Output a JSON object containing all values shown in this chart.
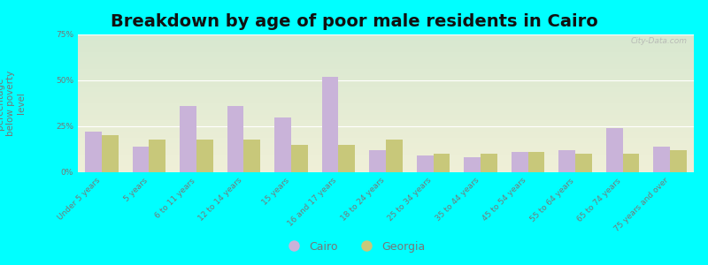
{
  "title": "Breakdown by age of poor male residents in Cairo",
  "ylabel": "percentage\nbelow poverty\nlevel",
  "categories": [
    "Under 5 years",
    "5 years",
    "6 to 11 years",
    "12 to 14 years",
    "15 years",
    "16 and 17 years",
    "18 to 24 years",
    "25 to 34 years",
    "35 to 44 years",
    "45 to 54 years",
    "55 to 64 years",
    "65 to 74 years",
    "75 years and over"
  ],
  "cairo_values": [
    22,
    14,
    36,
    36,
    30,
    52,
    12,
    9,
    8,
    11,
    12,
    24,
    14
  ],
  "georgia_values": [
    20,
    18,
    18,
    18,
    15,
    15,
    18,
    10,
    10,
    11,
    10,
    10,
    12
  ],
  "cairo_color": "#c9b3d9",
  "georgia_color": "#c8c87a",
  "ylim": [
    0,
    75
  ],
  "yticks": [
    0,
    25,
    50,
    75
  ],
  "ytick_labels": [
    "0%",
    "25%",
    "50%",
    "75%"
  ],
  "background_color": "#00ffff",
  "plot_bg_top": "#d8e8d0",
  "plot_bg_bottom": "#f0f0d8",
  "title_fontsize": 14,
  "axis_label_fontsize": 7.5,
  "tick_label_fontsize": 6.5,
  "legend_fontsize": 9,
  "bar_width": 0.35,
  "watermark": "City-Data.com"
}
